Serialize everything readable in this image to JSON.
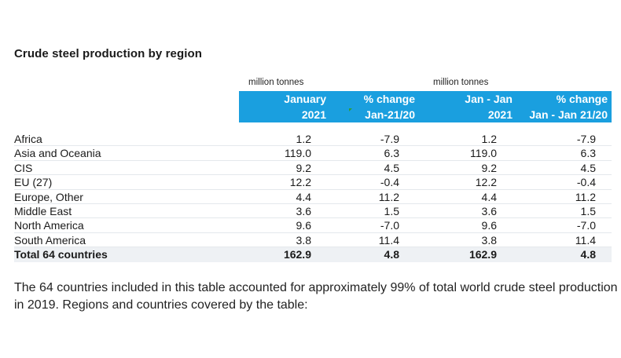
{
  "title": "Crude steel production by region",
  "units": [
    "million tonnes",
    "million tonnes"
  ],
  "columns": [
    {
      "line1": "January",
      "line2": "2021"
    },
    {
      "line1": "% change",
      "line2": "Jan-21/20"
    },
    {
      "line1": "Jan - Jan",
      "line2": "2021"
    },
    {
      "line1": "% change",
      "line2": "Jan - Jan 21/20"
    }
  ],
  "rows": [
    {
      "region": "Africa",
      "jan": "1.2",
      "pct": "-7.9",
      "ytd": "1.2",
      "ytd_pct": "-7.9"
    },
    {
      "region": "Asia and Oceania",
      "jan": "119.0",
      "pct": "6.3",
      "ytd": "119.0",
      "ytd_pct": "6.3"
    },
    {
      "region": "CIS",
      "jan": "9.2",
      "pct": "4.5",
      "ytd": "9.2",
      "ytd_pct": "4.5"
    },
    {
      "region": "EU (27)",
      "jan": "12.2",
      "pct": "-0.4",
      "ytd": "12.2",
      "ytd_pct": "-0.4"
    },
    {
      "region": "Europe, Other",
      "jan": "4.4",
      "pct": "11.2",
      "ytd": "4.4",
      "ytd_pct": "11.2"
    },
    {
      "region": "Middle East",
      "jan": "3.6",
      "pct": "1.5",
      "ytd": "3.6",
      "ytd_pct": "1.5"
    },
    {
      "region": "North America",
      "jan": "9.6",
      "pct": "-7.0",
      "ytd": "9.6",
      "ytd_pct": "-7.0"
    },
    {
      "region": "South America",
      "jan": "3.8",
      "pct": "11.4",
      "ytd": "3.8",
      "ytd_pct": "11.4"
    }
  ],
  "total": {
    "region": "Total 64 countries",
    "jan": "162.9",
    "pct": "4.8",
    "ytd": "162.9",
    "ytd_pct": "4.8"
  },
  "footnote": "The 64 countries included in this table accounted for approximately 99% of total world crude steel production in 2019. Regions and countries covered by the table:",
  "colors": {
    "header_bg": "#1a9fdf",
    "header_text": "#ffffff",
    "total_bg": "#eef1f4"
  }
}
